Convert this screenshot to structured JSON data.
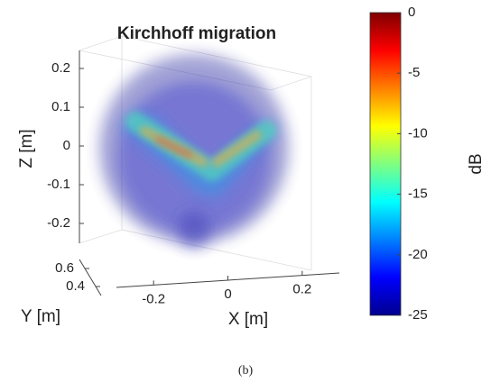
{
  "chart_data": {
    "type": "volume",
    "title": "Kirchhoff migration",
    "xlabel": "X [m]",
    "ylabel": "Y [m]",
    "zlabel": "Z [m]",
    "xlim": [
      -0.3,
      0.3
    ],
    "xticks": [
      -0.2,
      0,
      0.2
    ],
    "ylim": [
      0.3,
      0.7
    ],
    "yticks": [
      0.4,
      0.6
    ],
    "zlim": [
      -0.25,
      0.25
    ],
    "zticks": [
      -0.2,
      -0.1,
      0,
      0.1,
      0.2
    ],
    "colorbar": {
      "label": "dB",
      "lim": [
        -25,
        0
      ],
      "ticks": [
        -25,
        -20,
        -15,
        -10,
        -5,
        0
      ],
      "colormap": [
        "#00008f",
        "#0000ff",
        "#0080ff",
        "#00ffff",
        "#80ff80",
        "#ffff00",
        "#ff8000",
        "#ff0000",
        "#800000"
      ]
    }
  },
  "caption": "(b)"
}
